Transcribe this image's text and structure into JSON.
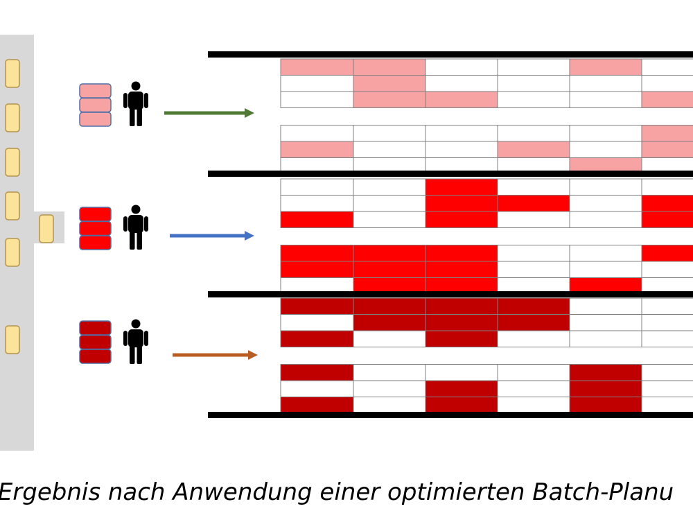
{
  "caption": "r Ergebnis nach Anwendung einer optimierten Batch-Planu",
  "colors": {
    "panel": "#d8d8d8",
    "queue_item": "#fbe49a",
    "queue_item_border": "#b5924a",
    "grid_line": "#7f7f7f",
    "separator": "#000000",
    "person": "#000000"
  },
  "icons": {
    "person": "person-icon",
    "arrow": "right-arrow-icon",
    "stack": "batch-stack-icon",
    "queue_item": "queue-item-icon"
  },
  "lanes": [
    {
      "name": "lane-1",
      "fill": "#f8a3a3",
      "arrow_color": "#4e7a34",
      "cells": [
        [
          1,
          1,
          0,
          0,
          1,
          0
        ],
        [
          0,
          1,
          0,
          0,
          0,
          0
        ],
        [
          0,
          1,
          1,
          0,
          0,
          1
        ],
        [
          0,
          0,
          0,
          0,
          0,
          1
        ],
        [
          1,
          0,
          0,
          1,
          0,
          1
        ],
        [
          0,
          0,
          0,
          0,
          1,
          0
        ]
      ]
    },
    {
      "name": "lane-2",
      "fill": "#ff0000",
      "arrow_color": "#4472c4",
      "cells": [
        [
          0,
          0,
          1,
          0,
          0,
          0
        ],
        [
          0,
          0,
          1,
          1,
          0,
          1
        ],
        [
          1,
          0,
          1,
          0,
          0,
          1
        ],
        [
          1,
          1,
          1,
          0,
          0,
          1
        ],
        [
          1,
          1,
          1,
          0,
          0,
          0
        ],
        [
          0,
          1,
          1,
          0,
          1,
          0
        ]
      ]
    },
    {
      "name": "lane-3",
      "fill": "#c00000",
      "arrow_color": "#b85c22",
      "cells": [
        [
          1,
          1,
          1,
          1,
          0,
          0
        ],
        [
          0,
          1,
          1,
          1,
          0,
          0
        ],
        [
          1,
          0,
          1,
          0,
          0,
          0
        ],
        [
          1,
          0,
          0,
          0,
          1,
          0
        ],
        [
          0,
          0,
          1,
          0,
          1,
          0
        ],
        [
          1,
          0,
          1,
          0,
          1,
          0
        ]
      ]
    }
  ]
}
